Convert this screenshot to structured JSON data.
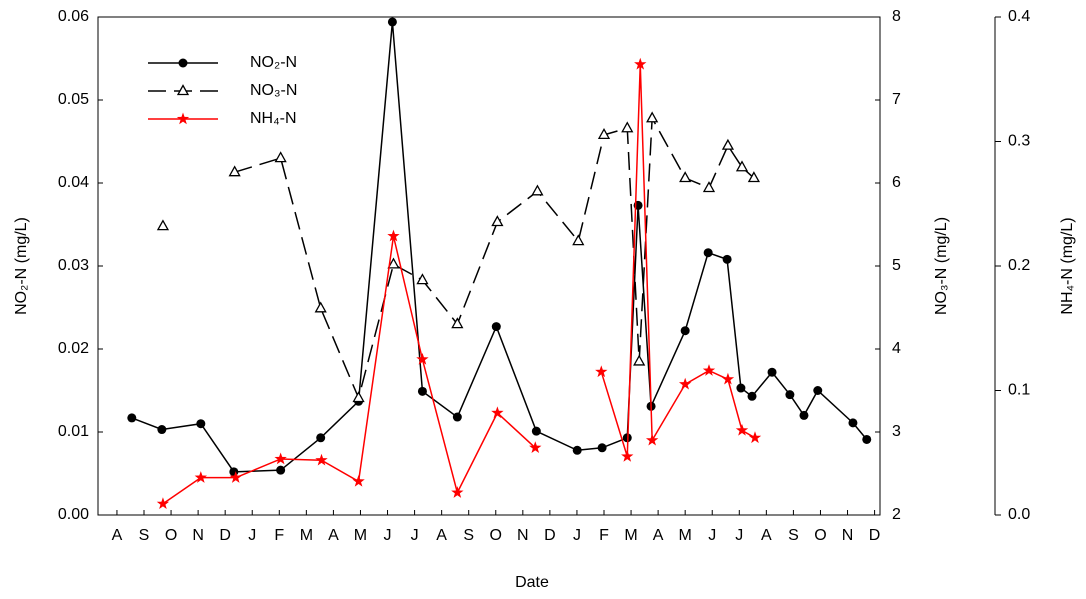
{
  "chart_data": {
    "type": "line",
    "xlabel": "Date",
    "ylabel": "NO₂-N (mg/L)",
    "y2label": "NO₃-N (mg/L)",
    "y3label": "NH₄-N (mg/L)",
    "xlim": [
      -0.7,
      28.2
    ],
    "xticks": [
      {
        "value": 0,
        "label": "A"
      },
      {
        "value": 1,
        "label": "S"
      },
      {
        "value": 2,
        "label": "O"
      },
      {
        "value": 3,
        "label": "N"
      },
      {
        "value": 4,
        "label": "D"
      },
      {
        "value": 5,
        "label": "J"
      },
      {
        "value": 6,
        "label": "F"
      },
      {
        "value": 7,
        "label": "M"
      },
      {
        "value": 8,
        "label": "A"
      },
      {
        "value": 9,
        "label": "M"
      },
      {
        "value": 10,
        "label": "J"
      },
      {
        "value": 11,
        "label": "J"
      },
      {
        "value": 12,
        "label": "A"
      },
      {
        "value": 13,
        "label": "S"
      },
      {
        "value": 14,
        "label": "O"
      },
      {
        "value": 15,
        "label": "N"
      },
      {
        "value": 16,
        "label": "D"
      },
      {
        "value": 17,
        "label": "J"
      },
      {
        "value": 18,
        "label": "F"
      },
      {
        "value": 19,
        "label": "M"
      },
      {
        "value": 20,
        "label": "A"
      },
      {
        "value": 21,
        "label": "M"
      },
      {
        "value": 22,
        "label": "J"
      },
      {
        "value": 23,
        "label": "J"
      },
      {
        "value": 24,
        "label": "A"
      },
      {
        "value": 25,
        "label": "S"
      },
      {
        "value": 26,
        "label": "O"
      },
      {
        "value": 27,
        "label": "N"
      },
      {
        "value": 28,
        "label": "D"
      }
    ],
    "ylim": [
      0,
      0.06
    ],
    "yticks": [
      {
        "value": 0,
        "label": "0.00"
      },
      0.01,
      0.02,
      0.03,
      0.04,
      0.05,
      0.06
    ],
    "y2lim": [
      2,
      8
    ],
    "y2ticks": [
      2,
      3,
      4,
      5,
      6,
      7,
      8
    ],
    "y3lim": [
      0,
      0.4
    ],
    "y3ticks": [
      {
        "value": 0,
        "label": "0.0"
      },
      0.1,
      0.2,
      0.3,
      0.4
    ],
    "legend": "upper left",
    "series": [
      {
        "name": "NO₂-N",
        "color": "#000000",
        "marker": "circle",
        "dash": "solid",
        "axis": "y",
        "x": [
          0.55,
          1.66,
          3.1,
          4.32,
          6.05,
          7.53,
          8.93,
          10.18,
          11.29,
          12.58,
          14.02,
          15.5,
          17.01,
          17.93,
          18.86,
          19.26,
          19.74,
          21.0,
          21.85,
          22.55,
          23.06,
          23.47,
          24.21,
          24.87,
          25.39,
          25.9,
          27.2,
          27.71
        ],
        "values": [
          0.0117,
          0.0103,
          0.011,
          0.0052,
          0.0054,
          0.0093,
          0.0137,
          0.0594,
          0.0149,
          0.0118,
          0.0227,
          0.0101,
          0.0078,
          0.0081,
          0.0093,
          0.0373,
          0.0131,
          0.0222,
          0.0316,
          0.0308,
          0.0153,
          0.0143,
          0.0172,
          0.0145,
          0.012,
          0.015,
          0.0111,
          0.0091
        ]
      },
      {
        "name": "NO₃-N",
        "color": "#000000",
        "marker": "triangle",
        "dash": "dashed",
        "axis": "y2",
        "x": [
          1.7,
          null,
          4.35,
          6.05,
          7.53,
          8.93,
          10.22,
          11.29,
          12.58,
          14.06,
          15.54,
          17.05,
          18.0,
          18.86,
          19.3,
          19.78,
          21.0,
          21.88,
          22.58,
          23.1,
          23.54
        ],
        "values": [
          5.48,
          null,
          6.13,
          6.3,
          4.49,
          3.41,
          5.02,
          4.83,
          4.3,
          5.53,
          5.9,
          5.3,
          6.58,
          6.66,
          3.85,
          6.78,
          6.06,
          5.94,
          6.45,
          6.19,
          6.06
        ]
      },
      {
        "name": "NH₄-N",
        "color": "#ff0000",
        "marker": "star",
        "dash": "solid",
        "axis": "y3",
        "x": [
          1.7,
          3.1,
          4.39,
          6.05,
          7.56,
          8.93,
          10.22,
          11.29,
          12.58,
          14.06,
          15.46,
          null,
          17.9,
          18.86,
          19.34,
          19.78,
          21.0,
          21.88,
          22.58,
          23.1,
          23.58
        ],
        "values": [
          0.009,
          0.03,
          0.03,
          0.045,
          0.044,
          0.027,
          0.224,
          0.125,
          0.018,
          0.082,
          0.054,
          null,
          0.115,
          0.047,
          0.362,
          0.06,
          0.105,
          0.116,
          0.109,
          0.068,
          0.062
        ]
      }
    ]
  }
}
